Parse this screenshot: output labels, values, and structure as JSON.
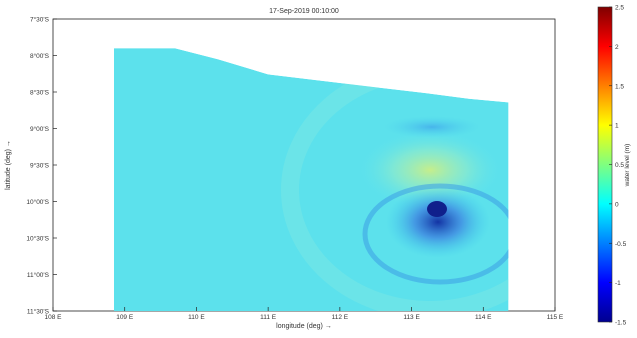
{
  "chart_data": {
    "type": "heatmap",
    "title": "17-Sep-2019 00:10:00",
    "xlabel": "longitude (deg) →",
    "ylabel": "latitude (deg) →",
    "colorbar_label": "water level (m)",
    "x_ticks": [
      "108 E",
      "109 E",
      "110 E",
      "111 E",
      "112 E",
      "113 E",
      "114 E",
      "115 E"
    ],
    "y_ticks": [
      "7°30'S",
      "8°00'S",
      "8°30'S",
      "9°00'S",
      "9°30'S",
      "10°00'S",
      "10°30'S",
      "11°00'S",
      "11°30'S"
    ],
    "colorbar_ticks": [
      "2.5",
      "2",
      "1.5",
      "1",
      "0.5",
      "0",
      "-0.5",
      "-1",
      "-1.5"
    ],
    "colorbar_range": [
      -1.5,
      2.5
    ],
    "xlim": [
      108,
      115
    ],
    "background_level": 0,
    "domain_lon_range": [
      108.85,
      114.35
    ],
    "coast_latitudes": [
      {
        "lon": 108.85,
        "lat": -7.9
      },
      {
        "lon": 109.7,
        "lat": -7.9
      },
      {
        "lon": 110.3,
        "lat": -8.05
      },
      {
        "lon": 111.0,
        "lat": -8.25
      },
      {
        "lon": 111.8,
        "lat": -8.35
      },
      {
        "lon": 112.5,
        "lat": -8.45
      },
      {
        "lon": 113.2,
        "lat": -8.5
      },
      {
        "lon": 113.8,
        "lat": -8.6
      },
      {
        "lon": 114.35,
        "lat": -8.65
      }
    ],
    "features": [
      {
        "kind": "trough",
        "lon": 113.4,
        "lat": -10.05,
        "value": -0.6
      },
      {
        "kind": "crest",
        "lon": 113.3,
        "lat": -9.55,
        "value": 0.35
      },
      {
        "kind": "trough",
        "lon": 113.1,
        "lat": -9.0,
        "value": -0.15
      }
    ]
  }
}
